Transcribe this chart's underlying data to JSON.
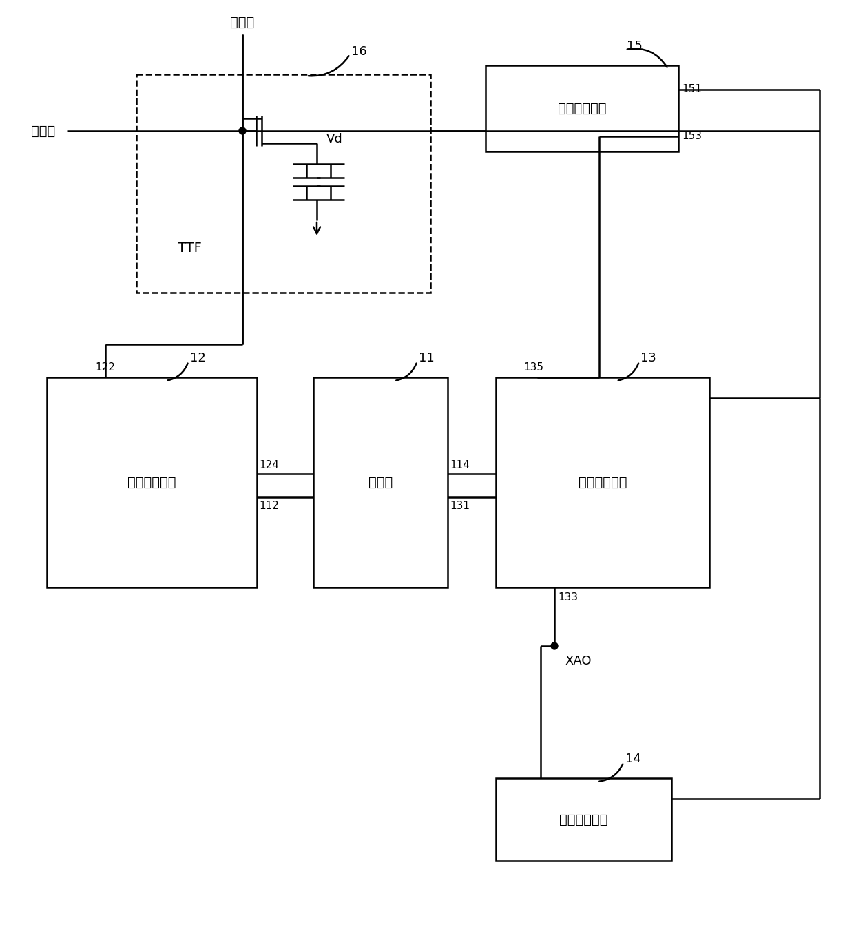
{
  "bg_color": "#ffffff",
  "texts": {
    "data_line": "数据线",
    "scan_line": "扫描线",
    "label_16": "16",
    "label_15": "15",
    "label_151": "151",
    "label_153": "153",
    "label_14": "14",
    "label_12": "12",
    "label_122": "122",
    "label_124": "124",
    "label_112": "112",
    "label_11": "11",
    "label_114": "114",
    "label_131": "131",
    "label_13": "13",
    "label_135": "135",
    "label_133": "133",
    "chip15": "栏极驱动芯片",
    "block12": "电压检测电路",
    "block11": "控制器",
    "block13": "电压输出电路",
    "block14": "电源管理芯片",
    "Vd": "Vd",
    "TTF": "TTF",
    "XAO": "XAO"
  }
}
